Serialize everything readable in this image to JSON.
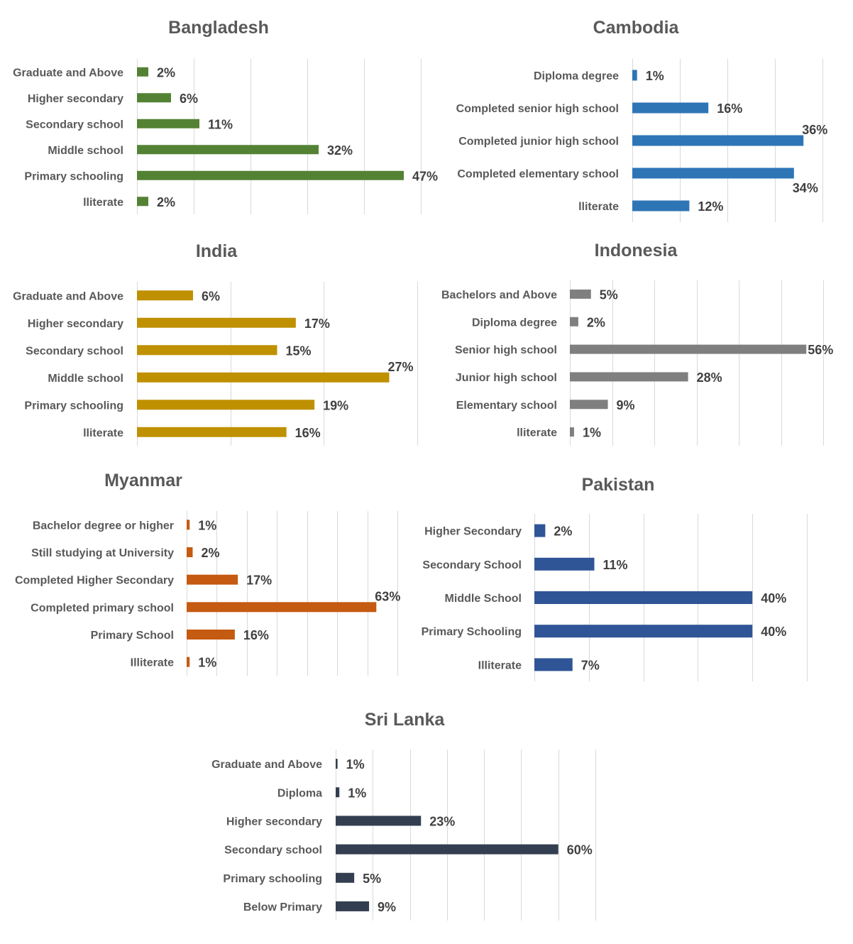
{
  "chart_data": [
    {
      "type": "bar",
      "title": "Bangladesh",
      "categories": [
        "Graduate and Above",
        "Higher secondary",
        "Secondary school",
        "Middle school",
        "Primary schooling",
        "lliterate"
      ],
      "values": [
        2,
        6,
        11,
        32,
        47,
        2
      ],
      "value_labels": [
        "2%",
        "6%",
        "11%",
        "32%",
        "47%",
        "2%"
      ],
      "color": "#548235",
      "xlim": [
        0,
        50
      ],
      "grid": true
    },
    {
      "type": "bar",
      "title": "Cambodia",
      "categories": [
        "Diploma degree",
        "Completed senior high school",
        "Completed junior high school",
        "Completed elementary school",
        "lliterate"
      ],
      "values": [
        1,
        16,
        36,
        34,
        12
      ],
      "value_labels": [
        "1%",
        "16%",
        "36%",
        "34%",
        "12%"
      ],
      "color": "#2e75b6",
      "xlim": [
        0,
        40
      ],
      "grid": true
    },
    {
      "type": "bar",
      "title": "India",
      "categories": [
        "Graduate and Above",
        "Higher secondary",
        "Secondary school",
        "Middle school",
        "Primary schooling",
        "lliterate"
      ],
      "values": [
        6,
        17,
        15,
        27,
        19,
        16
      ],
      "value_labels": [
        "6%",
        "17%",
        "15%",
        "27%",
        "19%",
        "16%"
      ],
      "color": "#bf9000",
      "xlim": [
        0,
        30
      ],
      "grid": true
    },
    {
      "type": "bar",
      "title": "Indonesia",
      "categories": [
        "Bachelors and Above",
        "Diploma degree",
        "Senior high school",
        "Junior high school",
        "Elementary school",
        "lliterate"
      ],
      "values": [
        5,
        2,
        56,
        28,
        9,
        1
      ],
      "value_labels": [
        "5%",
        "2%",
        "56%",
        "28%",
        "9%",
        "1%"
      ],
      "color": "#7f7f7f",
      "xlim": [
        0,
        60
      ],
      "grid": true
    },
    {
      "type": "bar",
      "title": "Myanmar",
      "categories": [
        "Bachelor degree or higher",
        "Still studying at University",
        "Completed Higher Secondary",
        "Completed primary school",
        "Primary School",
        "Illiterate"
      ],
      "values": [
        1,
        2,
        17,
        63,
        16,
        1
      ],
      "value_labels": [
        "1%",
        "2%",
        "17%",
        "63%",
        "16%",
        "1%"
      ],
      "color": "#c55a11",
      "xlim": [
        0,
        70
      ],
      "grid": true
    },
    {
      "type": "bar",
      "title": "Pakistan",
      "categories": [
        "Higher Secondary",
        "Secondary School",
        "Middle School",
        "Primary Schooling",
        "Illiterate"
      ],
      "values": [
        2,
        11,
        40,
        40,
        7
      ],
      "value_labels": [
        "2%",
        "11%",
        "40%",
        "40%",
        "7%"
      ],
      "color": "#2f5597",
      "xlim": [
        0,
        50
      ],
      "grid": true
    },
    {
      "type": "bar",
      "title": "Sri Lanka",
      "categories": [
        "Graduate and Above",
        "Diploma",
        "Higher secondary",
        "Secondary school",
        "Primary schooling",
        "Below Primary"
      ],
      "values": [
        0.5,
        1,
        23,
        60,
        5,
        9
      ],
      "value_labels": [
        "1%",
        "1%",
        "23%",
        "60%",
        "5%",
        "9%"
      ],
      "color": "#333f50",
      "xlim": [
        0,
        70
      ],
      "grid": true
    }
  ]
}
